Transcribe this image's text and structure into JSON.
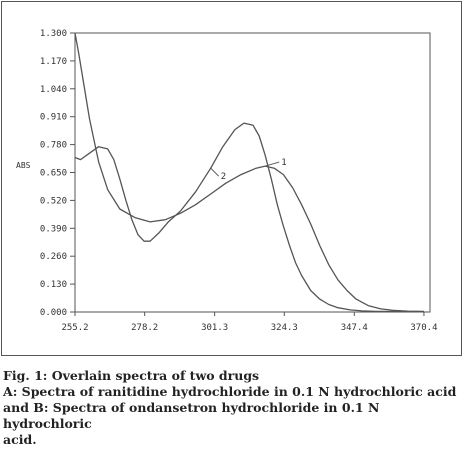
{
  "chart_data": {
    "type": "line",
    "title": "",
    "xlabel": "",
    "ylabel": "ABS",
    "xlim": [
      255.2,
      372.4
    ],
    "ylim": [
      0.0,
      1.3
    ],
    "x_ticks": [
      "255.2",
      "278.2",
      "301.3",
      "324.3",
      "347.4",
      "370.4"
    ],
    "x_tick_values": [
      255.2,
      278.2,
      301.3,
      324.3,
      347.4,
      370.4
    ],
    "y_ticks": [
      "1.300",
      "1.170",
      "1.040",
      "0.910",
      "0.780",
      "0.650",
      "0.520",
      "0.390",
      "0.260",
      "0.130",
      "0.000"
    ],
    "y_tick_values": [
      1.3,
      1.17,
      1.04,
      0.91,
      0.78,
      0.65,
      0.52,
      0.39,
      0.26,
      0.13,
      0.0
    ],
    "grid": false,
    "series": [
      {
        "label": "1",
        "color": "#555555",
        "x": [
          255.2,
          256.5,
          258.0,
          260.0,
          263.0,
          266.0,
          270.0,
          275.0,
          280.0,
          285.0,
          290.0,
          295.0,
          300.0,
          305.0,
          310.0,
          315.0,
          318.0,
          321.0,
          324.0,
          327.0,
          330.0,
          333.0,
          336.0,
          339.0,
          342.0,
          345.0,
          348.0,
          352.0,
          356.0,
          360.0,
          365.0,
          370.4
        ],
        "y": [
          1.3,
          1.2,
          1.07,
          0.9,
          0.7,
          0.57,
          0.48,
          0.44,
          0.42,
          0.43,
          0.46,
          0.5,
          0.55,
          0.6,
          0.64,
          0.67,
          0.68,
          0.67,
          0.64,
          0.58,
          0.5,
          0.41,
          0.31,
          0.22,
          0.15,
          0.1,
          0.06,
          0.03,
          0.015,
          0.008,
          0.004,
          0.003
        ]
      },
      {
        "label": "2",
        "color": "#555555",
        "x": [
          255.2,
          257.0,
          260.0,
          263.0,
          266.0,
          268.0,
          270.0,
          272.0,
          274.0,
          276.0,
          278.0,
          280.0,
          283.0,
          286.0,
          290.0,
          295.0,
          300.0,
          304.0,
          308.0,
          311.0,
          314.0,
          316.0,
          318.0,
          320.0,
          322.0,
          324.0,
          326.0,
          328.0,
          330.0,
          333.0,
          336.0,
          339.0,
          342.0,
          346.0,
          350.0,
          355.0,
          362.0,
          370.4
        ],
        "y": [
          0.72,
          0.71,
          0.74,
          0.77,
          0.76,
          0.71,
          0.62,
          0.52,
          0.43,
          0.36,
          0.33,
          0.33,
          0.37,
          0.42,
          0.47,
          0.56,
          0.67,
          0.77,
          0.85,
          0.88,
          0.87,
          0.82,
          0.73,
          0.62,
          0.5,
          0.4,
          0.31,
          0.23,
          0.17,
          0.1,
          0.06,
          0.035,
          0.02,
          0.01,
          0.005,
          0.003,
          0.002,
          0.002
        ]
      }
    ]
  },
  "caption": {
    "line1": "Fig. 1: Overlain spectra of two drugs",
    "line2": "A: Spectra of ranitidine hydrochloride in 0.1 N hydrochloric acid",
    "line3": "and B: Spectra of ondansetron hydrochloride in 0.1 N hydrochloric",
    "line4": "acid."
  }
}
